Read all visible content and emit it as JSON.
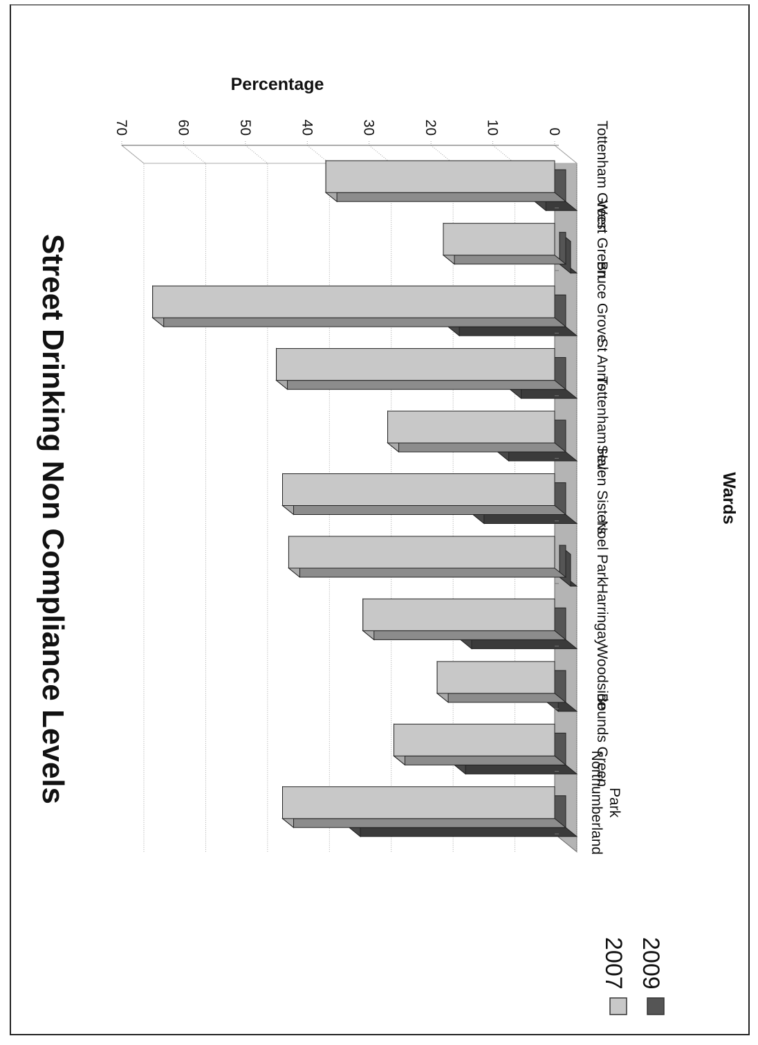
{
  "chart_data": {
    "type": "bar",
    "title": "Street Drinking Non Compliance Levels",
    "xlabel": "Wards",
    "ylabel": "Percentage",
    "ylim": [
      0,
      70
    ],
    "yticks": [
      0,
      10,
      20,
      30,
      40,
      50,
      60,
      70
    ],
    "categories": [
      "Tottenham Green",
      "West Green",
      "Bruce Grove",
      "St Ann's",
      "Tottenham Hale",
      "Seven Sisters",
      "Noel Park",
      "Harringay",
      "Woodside",
      "Bounds Green",
      "Northumberland Park"
    ],
    "series": [
      {
        "name": "2007",
        "color": "#c8c8c8",
        "values": [
          37,
          18,
          65,
          45,
          27,
          44,
          43,
          31,
          19,
          26,
          44
        ]
      },
      {
        "name": "2009",
        "color": "#555555",
        "values": [
          5,
          1,
          19,
          9,
          11,
          15,
          1,
          17,
          3,
          18,
          35
        ]
      }
    ],
    "grid": true,
    "legend": "bottom-left",
    "orientation": "rotated 90 degrees clockwise on the scanned page",
    "style": "3d-clustered-bar"
  }
}
